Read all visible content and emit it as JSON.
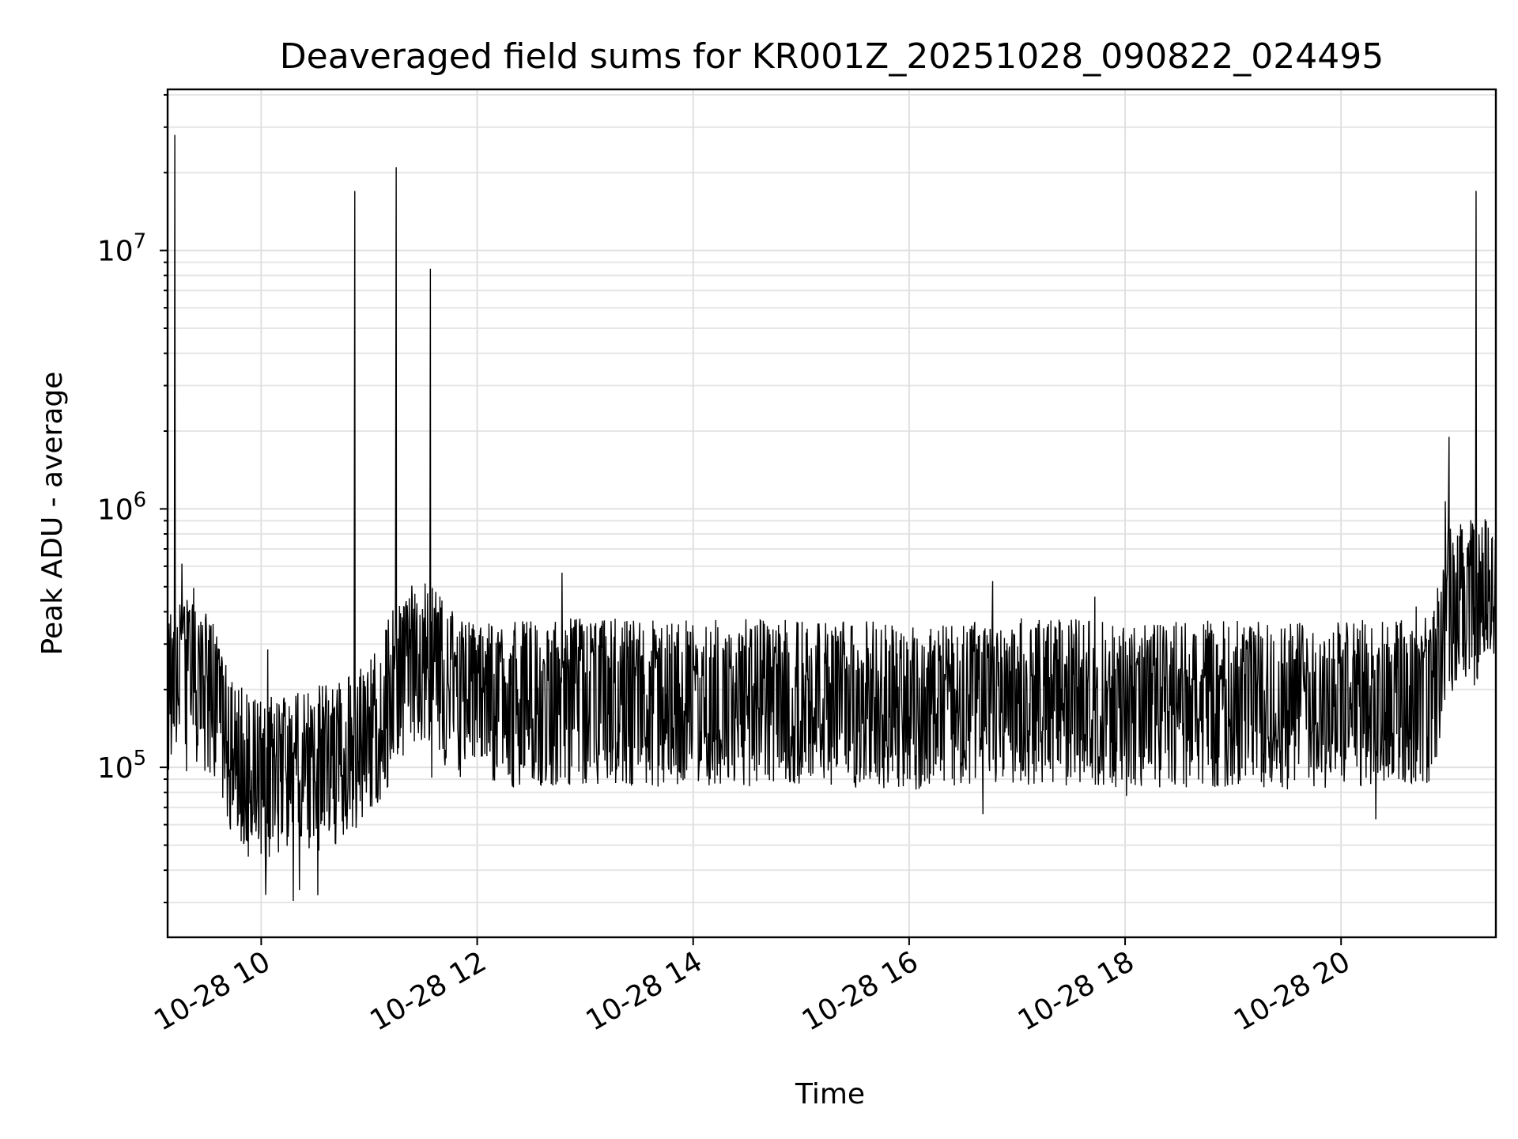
{
  "chart_data": {
    "type": "line",
    "title": "Deaveraged field sums for KR001Z_20251028_090822_024495",
    "xlabel": "Time",
    "ylabel": "Peak ADU - average",
    "yscale": "log",
    "grid": true,
    "xlim": [
      "2025-10-28 09:08",
      "2025-10-28 21:26"
    ],
    "ylim": [
      22000,
      42000000
    ],
    "x_ticks": [
      {
        "value": "2025-10-28 10:00",
        "label": "10-28 10"
      },
      {
        "value": "2025-10-28 12:00",
        "label": "10-28 12"
      },
      {
        "value": "2025-10-28 14:00",
        "label": "10-28 14"
      },
      {
        "value": "2025-10-28 16:00",
        "label": "10-28 16"
      },
      {
        "value": "2025-10-28 18:00",
        "label": "10-28 18"
      },
      {
        "value": "2025-10-28 20:00",
        "label": "10-28 20"
      }
    ],
    "y_ticks": [
      {
        "value": 100000,
        "base": "10",
        "exp": "5"
      },
      {
        "value": 1000000,
        "base": "10",
        "exp": "6"
      },
      {
        "value": 10000000,
        "base": "10",
        "exp": "7"
      }
    ],
    "series": [
      {
        "color": "#000000",
        "x": [
          "2025-10-28 09:08",
          "2025-10-28 09:15",
          "2025-10-28 09:25",
          "2025-10-28 09:35",
          "2025-10-28 09:45",
          "2025-10-28 09:55",
          "2025-10-28 10:10",
          "2025-10-28 10:30",
          "2025-10-28 10:45",
          "2025-10-28 11:00",
          "2025-10-28 11:15",
          "2025-10-28 11:30",
          "2025-10-28 11:45",
          "2025-10-28 12:00",
          "2025-10-28 13:00",
          "2025-10-28 14:00",
          "2025-10-28 15:00",
          "2025-10-28 16:00",
          "2025-10-28 17:00",
          "2025-10-28 18:00",
          "2025-10-28 19:00",
          "2025-10-28 20:00",
          "2025-10-28 20:50",
          "2025-10-28 21:00",
          "2025-10-28 21:10",
          "2025-10-28 21:26"
        ],
        "y": [
          200000,
          250000,
          230000,
          180000,
          110000,
          95000,
          100000,
          105000,
          110000,
          130000,
          220000,
          280000,
          210000,
          180000,
          190000,
          185000,
          190000,
          180000,
          190000,
          185000,
          185000,
          185000,
          190000,
          420000,
          450000,
          480000
        ],
        "spikes": [
          {
            "x": "2025-10-28 09:12",
            "y": 28000000
          },
          {
            "x": "2025-10-28 10:52",
            "y": 17000000
          },
          {
            "x": "2025-10-28 11:15",
            "y": 21000000
          },
          {
            "x": "2025-10-28 11:34",
            "y": 8500000
          },
          {
            "x": "2025-10-28 21:00",
            "y": 1900000
          },
          {
            "x": "2025-10-28 21:15",
            "y": 17000000
          }
        ],
        "noise_low_factor": 0.45,
        "noise_high_factor": 2.0
      }
    ]
  }
}
